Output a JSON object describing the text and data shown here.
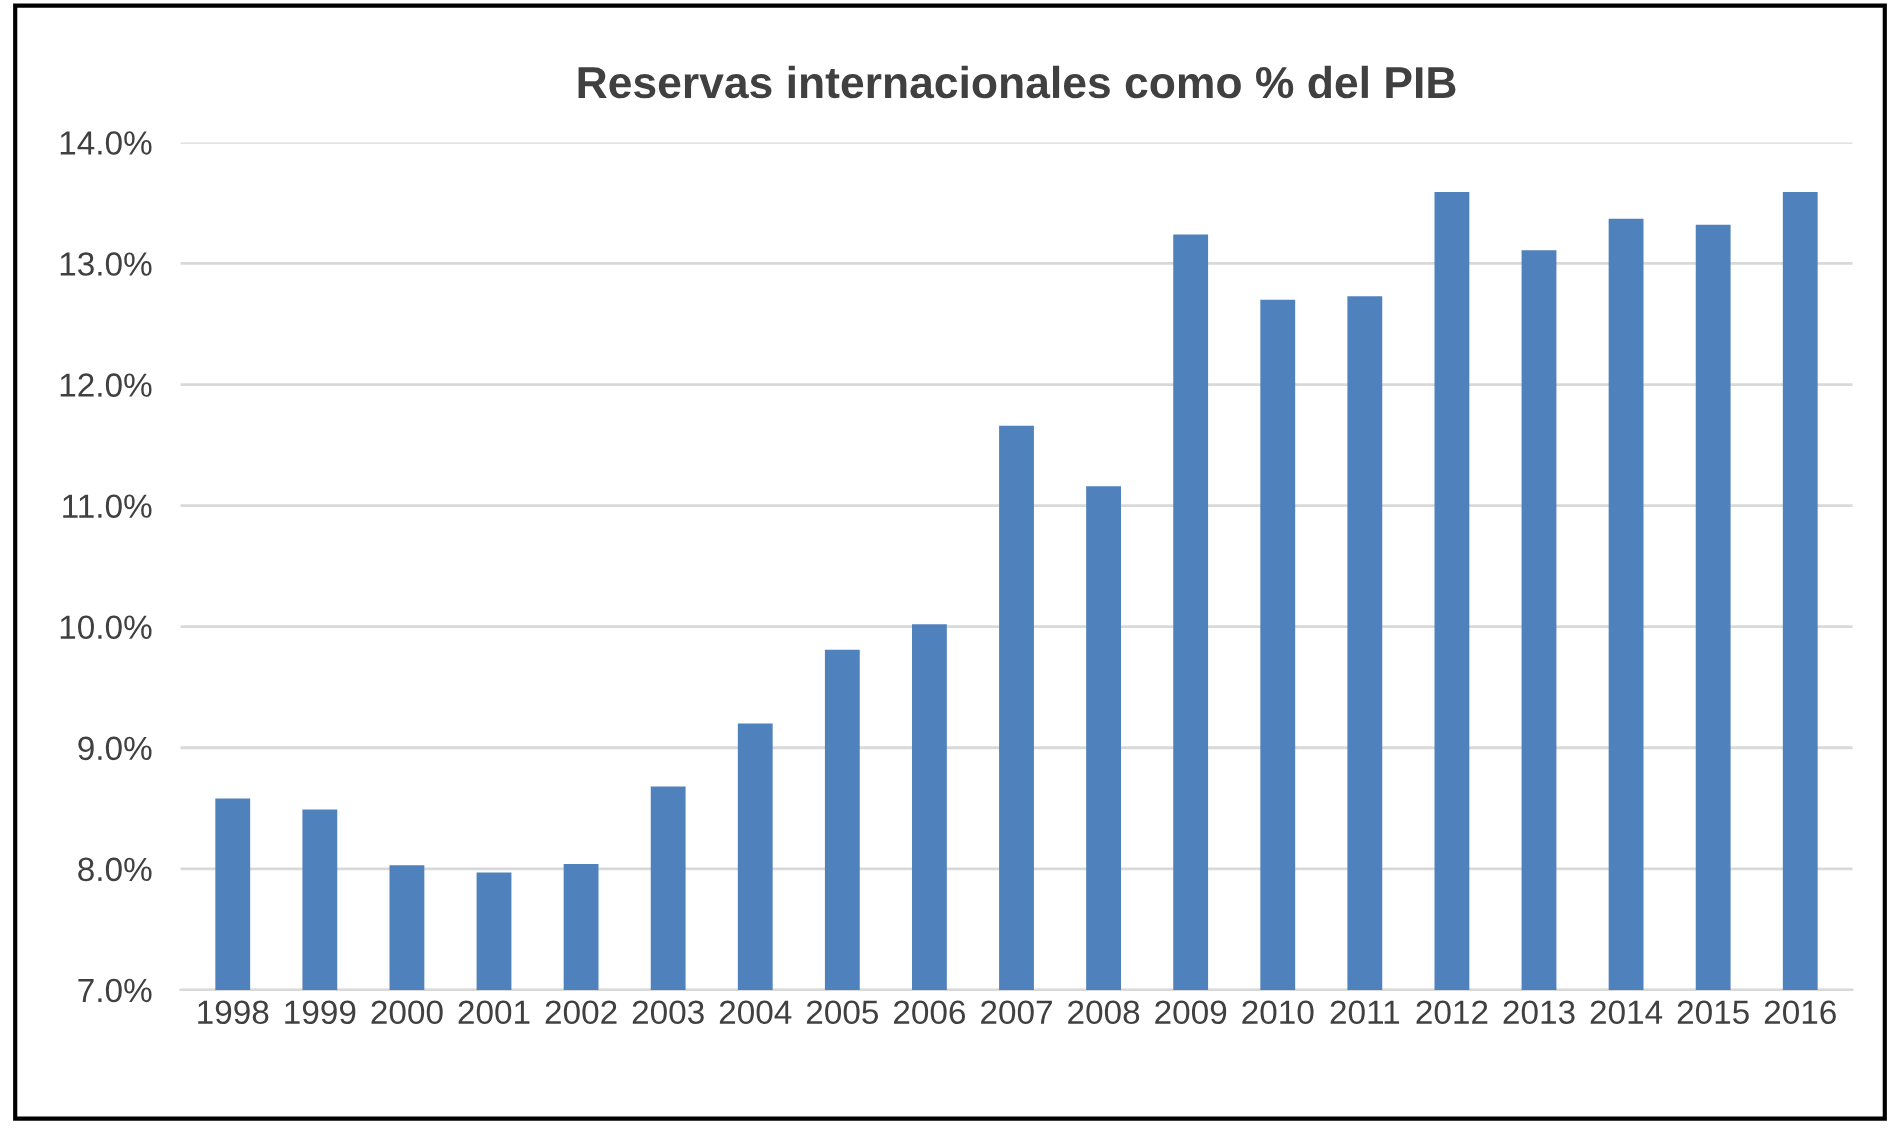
{
  "chart_data": {
    "type": "bar",
    "title": "Reservas internacionales como % del PIB",
    "categories": [
      "1998",
      "1999",
      "2000",
      "2001",
      "2002",
      "2003",
      "2004",
      "2005",
      "2006",
      "2007",
      "2008",
      "2009",
      "2010",
      "2011",
      "2012",
      "2013",
      "2014",
      "2015",
      "2016"
    ],
    "values": [
      8.58,
      8.49,
      8.03,
      7.97,
      8.04,
      8.68,
      9.2,
      9.81,
      10.02,
      11.66,
      11.16,
      13.24,
      12.7,
      12.73,
      13.59,
      13.11,
      13.37,
      13.32,
      13.59
    ],
    "color": "#4f81bd",
    "ylim": [
      7,
      14
    ],
    "yticks": [
      {
        "value": 7,
        "label": "7.0%"
      },
      {
        "value": 8,
        "label": "8.0%"
      },
      {
        "value": 9,
        "label": "9.0%"
      },
      {
        "value": 10,
        "label": "10.0%"
      },
      {
        "value": 11,
        "label": "11.0%"
      },
      {
        "value": 12,
        "label": "12.0%"
      },
      {
        "value": 13,
        "label": "13.0%"
      },
      {
        "value": 14,
        "label": "14.0%"
      }
    ],
    "grid": "y"
  }
}
